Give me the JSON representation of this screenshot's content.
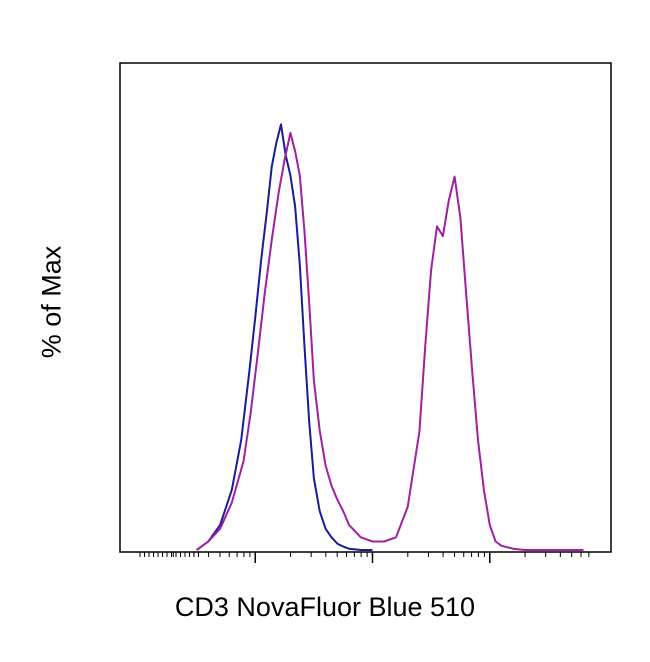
{
  "chart_data": {
    "type": "line",
    "title": "",
    "xlabel": "CD3 NovaFluor Blue 510",
    "ylabel": "% of Max",
    "x_scale": "biexponential (log decades, no tick labels)",
    "ylim": [
      0,
      100
    ],
    "grid": false,
    "legend": "none",
    "series": [
      {
        "color": "#1a1a9a",
        "x": [
          0.5,
          0.6,
          0.7,
          0.8,
          0.88,
          0.95,
          1.0,
          1.05,
          1.1,
          1.14,
          1.18,
          1.22,
          1.26,
          1.3,
          1.34,
          1.38,
          1.42,
          1.46,
          1.5,
          1.55,
          1.6,
          1.65,
          1.7,
          1.75,
          1.8,
          1.9,
          2.0
        ],
        "y": [
          0,
          2,
          6,
          14,
          26,
          42,
          55,
          68,
          80,
          90,
          96,
          100,
          93,
          88,
          81,
          67,
          48,
          30,
          17,
          9,
          5,
          3,
          1.5,
          0.8,
          0.3,
          0,
          0
        ]
      },
      {
        "color": "#a020a0",
        "x": [
          0.5,
          0.6,
          0.7,
          0.8,
          0.9,
          0.96,
          1.02,
          1.08,
          1.14,
          1.2,
          1.25,
          1.3,
          1.34,
          1.38,
          1.42,
          1.46,
          1.5,
          1.55,
          1.6,
          1.65,
          1.7,
          1.75,
          1.8,
          1.9,
          2.0,
          2.1,
          2.2,
          2.3,
          2.4,
          2.45,
          2.5,
          2.55,
          2.6,
          2.65,
          2.7,
          2.75,
          2.8,
          2.85,
          2.9,
          2.95,
          3.0,
          3.05,
          3.1,
          3.2,
          3.3,
          3.5,
          3.8
        ],
        "y": [
          0,
          2,
          5,
          11,
          21,
          32,
          46,
          60,
          73,
          84,
          92,
          98,
          94,
          88,
          75,
          58,
          40,
          28,
          20,
          15,
          12,
          9,
          6,
          3,
          2,
          2,
          3,
          10,
          28,
          48,
          66,
          76,
          74,
          82,
          88,
          78,
          60,
          42,
          26,
          14,
          6,
          2,
          1,
          0.3,
          0,
          0,
          0
        ]
      }
    ]
  }
}
